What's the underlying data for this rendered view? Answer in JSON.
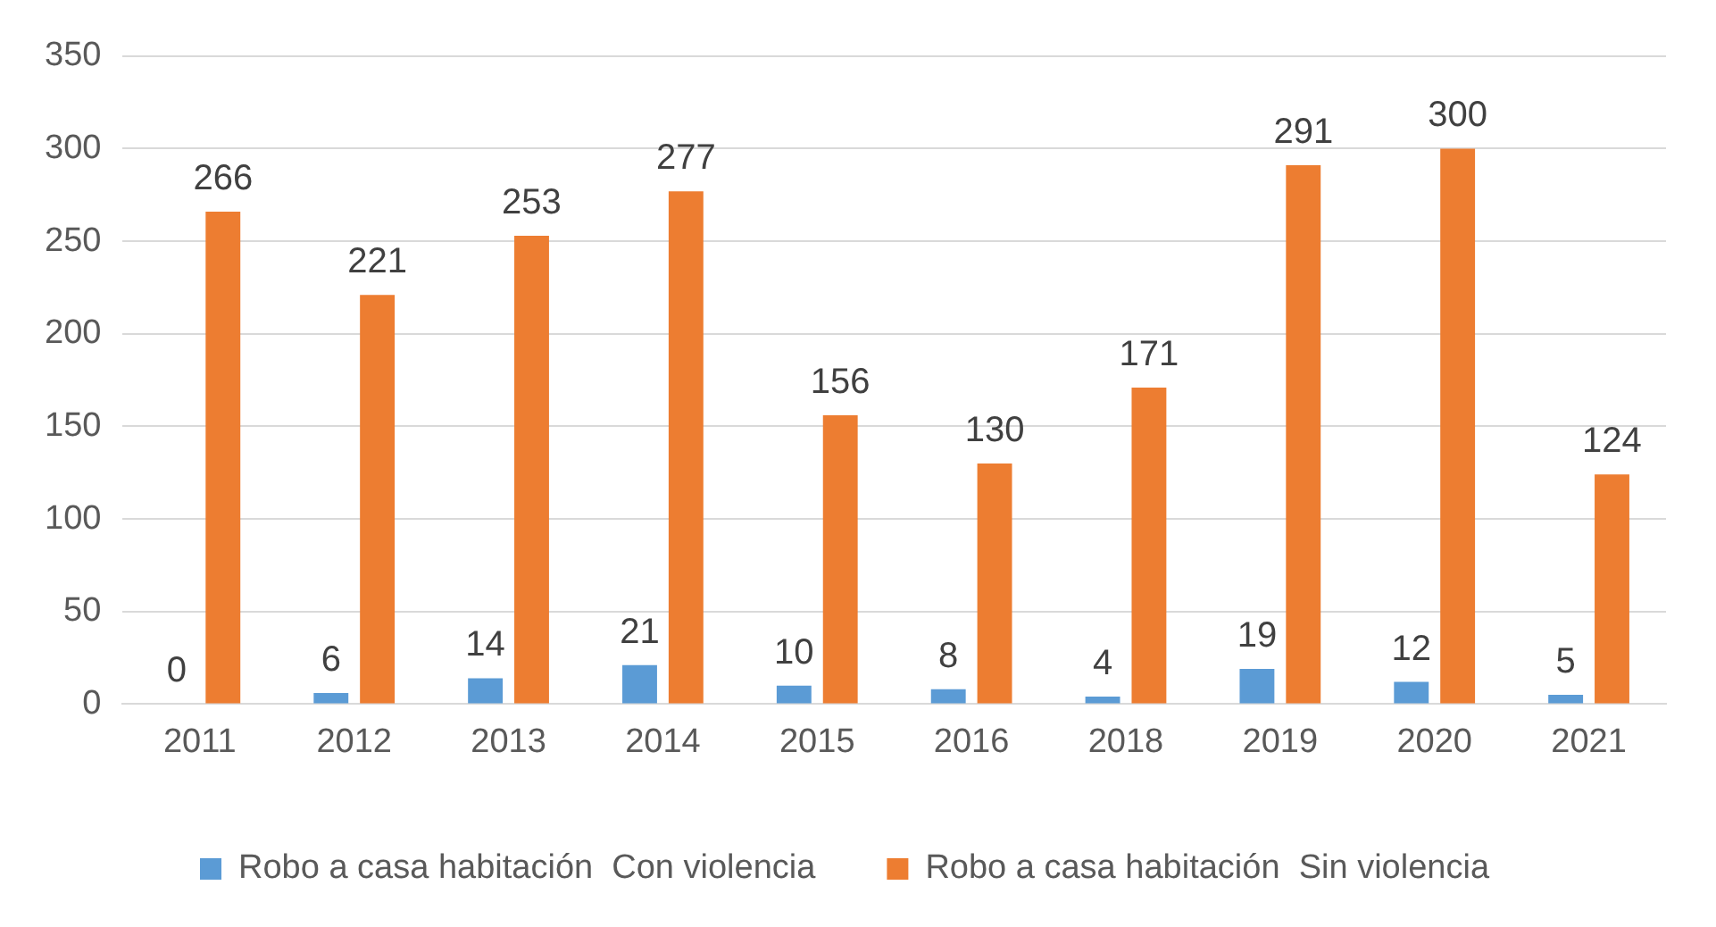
{
  "chart_data": {
    "type": "bar",
    "categories": [
      "2011",
      "2012",
      "2013",
      "2014",
      "2015",
      "2016",
      "2018",
      "2019",
      "2020",
      "2021"
    ],
    "series": [
      {
        "name": "Robo a casa habitación  Con violencia",
        "color": "#5b9bd5",
        "values": [
          0,
          6,
          14,
          21,
          10,
          8,
          4,
          19,
          12,
          5
        ]
      },
      {
        "name": "Robo a casa habitación  Sin violencia",
        "color": "#ed7d31",
        "values": [
          266,
          221,
          253,
          277,
          156,
          130,
          171,
          291,
          300,
          124
        ]
      }
    ],
    "ylim": [
      0,
      350
    ],
    "yticks": [
      0,
      50,
      100,
      150,
      200,
      250,
      300,
      350
    ],
    "grid": "y",
    "legend": "bottom",
    "data_labels": true
  }
}
